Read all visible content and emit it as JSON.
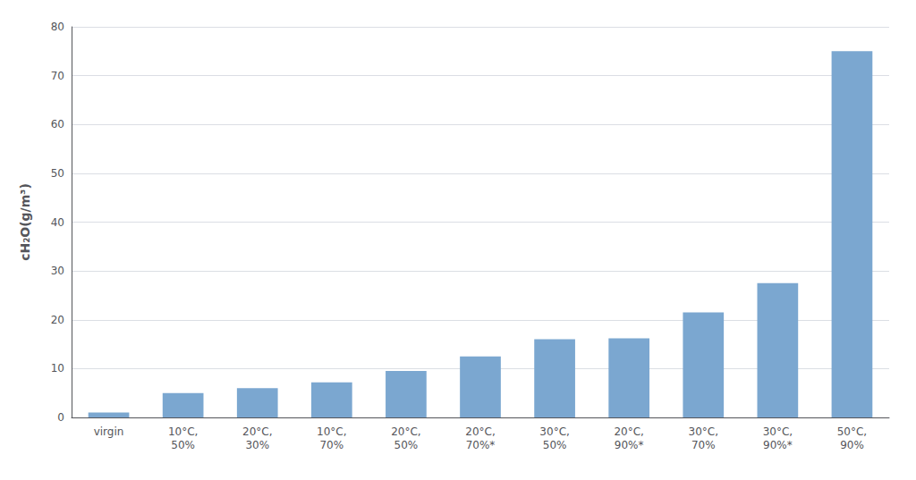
{
  "chart_data": {
    "type": "bar",
    "categories": [
      "virgin",
      "10°C,\n50%",
      "20°C,\n30%",
      "10°C,\n70%",
      "20°C,\n50%",
      "20°C,\n70%*",
      "30°C,\n50%",
      "20°C,\n90%*",
      "30°C,\n70%",
      "30°C,\n90%*",
      "50°C,\n90%"
    ],
    "values": [
      1.0,
      5.0,
      6.0,
      7.2,
      9.5,
      12.5,
      16.0,
      16.2,
      21.5,
      27.5,
      75.0
    ],
    "color": "#7BA7D0",
    "ylabel": "cH₂O(g/m³)",
    "ylim": [
      0,
      80
    ],
    "yticks": [
      0,
      10,
      20,
      30,
      40,
      50,
      60,
      70,
      80
    ],
    "grid": true
  }
}
